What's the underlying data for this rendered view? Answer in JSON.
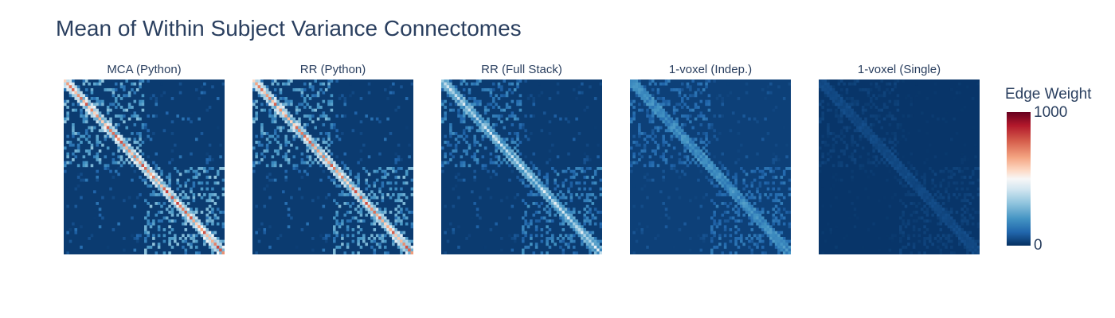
{
  "chart_data": {
    "type": "heatmap",
    "title": "Mean of Within Subject Variance Connectomes",
    "panels": [
      {
        "name": "MCA (Python)",
        "diag_level": 0.82,
        "offdiag_level": 0.3,
        "background": 0.02
      },
      {
        "name": "RR (Python)",
        "diag_level": 0.8,
        "offdiag_level": 0.28,
        "background": 0.02
      },
      {
        "name": "RR (Full Stack)",
        "diag_level": 0.45,
        "offdiag_level": 0.18,
        "background": 0.02
      },
      {
        "name": "1-voxel (Indep.)",
        "diag_level": 0.2,
        "offdiag_level": 0.12,
        "background": 0.03
      },
      {
        "name": "1-voxel (Single)",
        "diag_level": 0.04,
        "offdiag_level": 0.03,
        "background": 0.01
      }
    ],
    "colorscale": "RdBu",
    "zmin": 0,
    "zmax": 1000,
    "colorbar": {
      "title": "Edge Weight",
      "ticks": [
        "0",
        "1000"
      ]
    }
  },
  "colors": {
    "text": "#2a3f5f",
    "low": "#053061",
    "high": "#67001f"
  }
}
